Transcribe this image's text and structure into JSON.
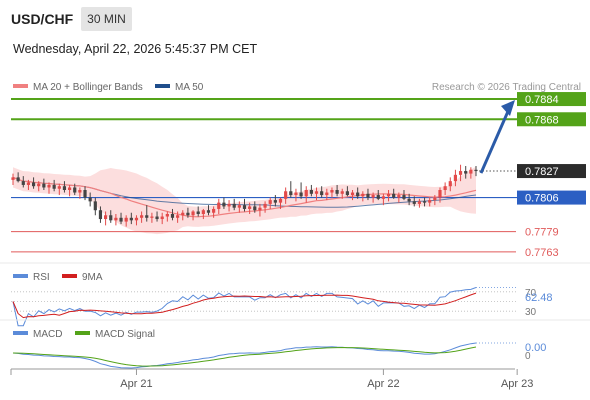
{
  "header": {
    "symbol": "USD/CHF",
    "timeframe": "30 MIN",
    "datetime": "Wednesday, April 22, 2026 5:45:37 PM CET"
  },
  "legend": {
    "ma20": "MA 20 + Bollinger Bands",
    "ma50": "MA 50",
    "credit": "Research © 2026 Trading Central",
    "rsi": "RSI",
    "rsi_ma": "9MA",
    "macd": "MACD",
    "macd_signal": "MACD Signal"
  },
  "colors": {
    "green": "#54a319",
    "blue": "#2c5fc3",
    "red": "#e05a5a",
    "current": "#2b2b2b",
    "bull": "#e34a4a",
    "bear": "#444444",
    "band": "#fbd3d3",
    "ma20": "#f08080",
    "ma50": "#1f4e8c",
    "rsi": "#5b8bd9",
    "rsi_ma": "#d21f1f",
    "macd": "#5b8bd9",
    "macd_signal": "#54a319",
    "arrow": "#2b5ba8"
  },
  "chart_data": {
    "type": "candlestick",
    "ylim": [
      0.7755,
      0.7888
    ],
    "levels": [
      {
        "value": 0.7884,
        "label": "0.7884",
        "kind": "resistance"
      },
      {
        "value": 0.7868,
        "label": "0.7868",
        "kind": "resistance"
      },
      {
        "value": 0.7827,
        "label": "0.7827",
        "kind": "current"
      },
      {
        "value": 0.7806,
        "label": "0.7806",
        "kind": "pivot"
      },
      {
        "value": 0.7779,
        "label": "0.7779",
        "kind": "support"
      },
      {
        "value": 0.7763,
        "label": "0.7763",
        "kind": "support"
      }
    ],
    "x_ticks": [
      {
        "index": 24,
        "label": "Apr 21"
      },
      {
        "index": 72,
        "label": "Apr 22"
      },
      {
        "index": 98,
        "label": "Apr 23"
      }
    ],
    "candles": [
      [
        0.782,
        0.7825,
        0.7816,
        0.7822
      ],
      [
        0.7822,
        0.7826,
        0.7818,
        0.7819
      ],
      [
        0.7819,
        0.7823,
        0.7814,
        0.7816
      ],
      [
        0.7816,
        0.782,
        0.7812,
        0.7818
      ],
      [
        0.7818,
        0.7822,
        0.7813,
        0.7815
      ],
      [
        0.7815,
        0.7819,
        0.7811,
        0.7817
      ],
      [
        0.7817,
        0.7821,
        0.7812,
        0.7814
      ],
      [
        0.7814,
        0.7818,
        0.7809,
        0.7816
      ],
      [
        0.7816,
        0.782,
        0.7811,
        0.7813
      ],
      [
        0.7813,
        0.7817,
        0.7808,
        0.7815
      ],
      [
        0.7815,
        0.7819,
        0.781,
        0.7812
      ],
      [
        0.7812,
        0.7816,
        0.7807,
        0.7814
      ],
      [
        0.7814,
        0.7817,
        0.7808,
        0.781
      ],
      [
        0.781,
        0.7814,
        0.7805,
        0.7812
      ],
      [
        0.7812,
        0.7815,
        0.7804,
        0.7806
      ],
      [
        0.7806,
        0.781,
        0.7799,
        0.7803
      ],
      [
        0.7803,
        0.7806,
        0.7792,
        0.7796
      ],
      [
        0.7796,
        0.7799,
        0.7786,
        0.7789
      ],
      [
        0.7789,
        0.7795,
        0.7784,
        0.7792
      ],
      [
        0.7792,
        0.7796,
        0.7786,
        0.7788
      ],
      [
        0.7788,
        0.7793,
        0.7784,
        0.779
      ],
      [
        0.779,
        0.7794,
        0.7785,
        0.7787
      ],
      [
        0.7787,
        0.7792,
        0.7783,
        0.779
      ],
      [
        0.779,
        0.7794,
        0.7785,
        0.7788
      ],
      [
        0.7788,
        0.7792,
        0.7784,
        0.779
      ],
      [
        0.779,
        0.7795,
        0.7786,
        0.7792
      ],
      [
        0.7792,
        0.78,
        0.7787,
        0.779
      ],
      [
        0.779,
        0.7794,
        0.7786,
        0.7791
      ],
      [
        0.7791,
        0.7795,
        0.7787,
        0.7789
      ],
      [
        0.7789,
        0.7794,
        0.7785,
        0.7791
      ],
      [
        0.7791,
        0.7795,
        0.7787,
        0.7793
      ],
      [
        0.7793,
        0.7797,
        0.7788,
        0.779
      ],
      [
        0.779,
        0.7795,
        0.7786,
        0.7792
      ],
      [
        0.7792,
        0.7796,
        0.7788,
        0.7794
      ],
      [
        0.7794,
        0.7798,
        0.779,
        0.7792
      ],
      [
        0.7792,
        0.7796,
        0.7788,
        0.7795
      ],
      [
        0.7795,
        0.7799,
        0.7791,
        0.7793
      ],
      [
        0.7793,
        0.7797,
        0.7789,
        0.7796
      ],
      [
        0.7796,
        0.78,
        0.7792,
        0.7794
      ],
      [
        0.7794,
        0.7799,
        0.779,
        0.7797
      ],
      [
        0.7797,
        0.7805,
        0.7793,
        0.7802
      ],
      [
        0.7802,
        0.7806,
        0.7797,
        0.7799
      ],
      [
        0.7799,
        0.7804,
        0.7795,
        0.7801
      ],
      [
        0.7801,
        0.7805,
        0.7796,
        0.7798
      ],
      [
        0.7798,
        0.7803,
        0.7794,
        0.78
      ],
      [
        0.78,
        0.7805,
        0.7795,
        0.7797
      ],
      [
        0.7797,
        0.7802,
        0.7793,
        0.7799
      ],
      [
        0.7799,
        0.7803,
        0.7794,
        0.7796
      ],
      [
        0.7796,
        0.7801,
        0.7791,
        0.7798
      ],
      [
        0.7798,
        0.7803,
        0.7794,
        0.7801
      ],
      [
        0.7801,
        0.7806,
        0.7797,
        0.7804
      ],
      [
        0.7804,
        0.7808,
        0.7799,
        0.7802
      ],
      [
        0.7802,
        0.7806,
        0.7797,
        0.7805
      ],
      [
        0.7805,
        0.7814,
        0.7801,
        0.7811
      ],
      [
        0.7811,
        0.7819,
        0.7806,
        0.7808
      ],
      [
        0.7808,
        0.7813,
        0.7803,
        0.781
      ],
      [
        0.781,
        0.7818,
        0.7805,
        0.7807
      ],
      [
        0.7807,
        0.7815,
        0.7802,
        0.7812
      ],
      [
        0.7812,
        0.7816,
        0.7807,
        0.7809
      ],
      [
        0.7809,
        0.7814,
        0.7804,
        0.7811
      ],
      [
        0.7811,
        0.7815,
        0.7806,
        0.7808
      ],
      [
        0.7808,
        0.7813,
        0.7804,
        0.781
      ],
      [
        0.781,
        0.7814,
        0.7806,
        0.7812
      ],
      [
        0.7812,
        0.7816,
        0.7807,
        0.7809
      ],
      [
        0.7809,
        0.7813,
        0.7805,
        0.7811
      ],
      [
        0.7811,
        0.7815,
        0.7807,
        0.7808
      ],
      [
        0.7808,
        0.7812,
        0.7804,
        0.781
      ],
      [
        0.781,
        0.7814,
        0.7805,
        0.7807
      ],
      [
        0.7807,
        0.7811,
        0.7803,
        0.7809
      ],
      [
        0.7809,
        0.7813,
        0.7804,
        0.7806
      ],
      [
        0.7806,
        0.781,
        0.7802,
        0.7808
      ],
      [
        0.7808,
        0.7812,
        0.7804,
        0.7805
      ],
      [
        0.7805,
        0.7809,
        0.78,
        0.7807
      ],
      [
        0.7807,
        0.7812,
        0.7803,
        0.7809
      ],
      [
        0.7809,
        0.7813,
        0.7805,
        0.7806
      ],
      [
        0.7806,
        0.781,
        0.7802,
        0.7808
      ],
      [
        0.7808,
        0.7812,
        0.7804,
        0.7805
      ],
      [
        0.7805,
        0.7809,
        0.78,
        0.7803
      ],
      [
        0.7803,
        0.7807,
        0.7799,
        0.7801
      ],
      [
        0.7801,
        0.7805,
        0.7798,
        0.7803
      ],
      [
        0.7803,
        0.7806,
        0.7799,
        0.7802
      ],
      [
        0.7802,
        0.7806,
        0.7799,
        0.7804
      ],
      [
        0.7804,
        0.7808,
        0.78,
        0.7806
      ],
      [
        0.7806,
        0.7814,
        0.7802,
        0.7812
      ],
      [
        0.7812,
        0.7818,
        0.7808,
        0.7815
      ],
      [
        0.7815,
        0.7822,
        0.7811,
        0.7819
      ],
      [
        0.7819,
        0.7828,
        0.7815,
        0.7824
      ],
      [
        0.7824,
        0.7832,
        0.7819,
        0.7827
      ],
      [
        0.7827,
        0.7831,
        0.7821,
        0.7825
      ],
      [
        0.7825,
        0.783,
        0.7821,
        0.7828
      ],
      [
        0.7828,
        0.7831,
        0.7823,
        0.7827
      ]
    ]
  },
  "rsi": {
    "label_value": "62.48",
    "levels": [
      "70",
      "30"
    ],
    "ylim": [
      20,
      80
    ]
  },
  "macd": {
    "label_value": "0.00",
    "zero_label": "0"
  }
}
